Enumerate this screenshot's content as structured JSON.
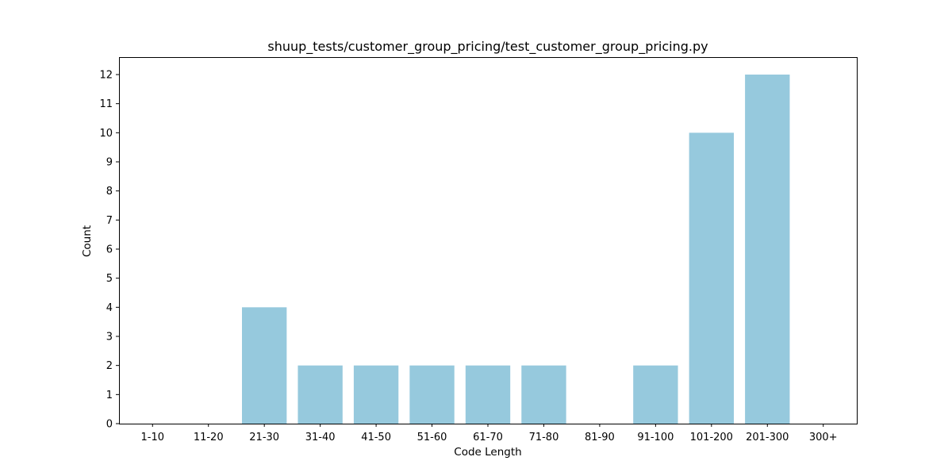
{
  "chart_data": {
    "type": "bar",
    "title": "shuup_tests/customer_group_pricing/test_customer_group_pricing.py",
    "xlabel": "Code Length",
    "ylabel": "Count",
    "categories": [
      "1-10",
      "11-20",
      "21-30",
      "31-40",
      "41-50",
      "51-60",
      "61-70",
      "71-80",
      "81-90",
      "91-100",
      "101-200",
      "201-300",
      "300+"
    ],
    "values": [
      0,
      0,
      4,
      2,
      2,
      2,
      2,
      2,
      0,
      2,
      10,
      12,
      0
    ],
    "yticks": [
      0,
      1,
      2,
      3,
      4,
      5,
      6,
      7,
      8,
      9,
      10,
      11,
      12
    ],
    "ylim": [
      0,
      12.6
    ],
    "bar_color": "#96c9dd",
    "grid": false,
    "legend": "none"
  }
}
